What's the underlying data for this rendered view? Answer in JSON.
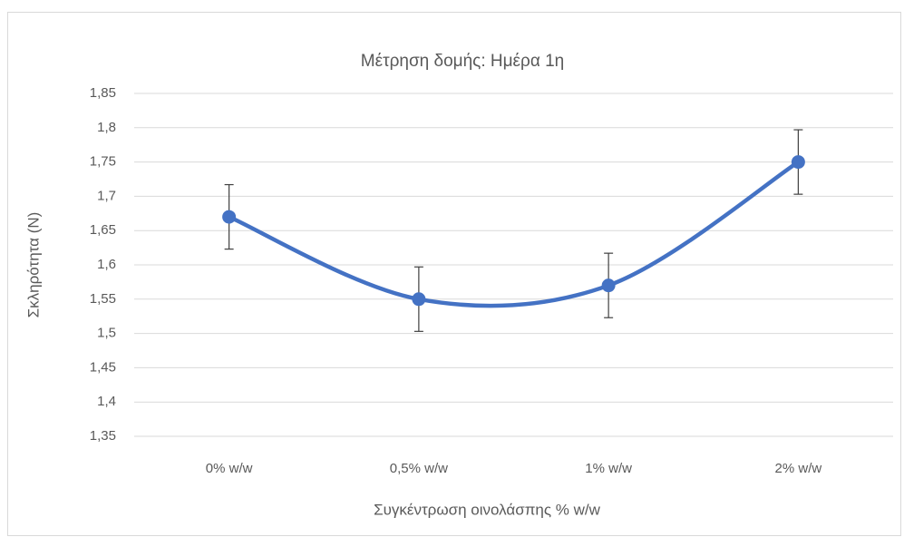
{
  "chart_data": {
    "type": "line",
    "title": "Μέτρηση δομής: Ημέρα 1η",
    "xlabel": "Συγκέντρωση οινολάσπης % w/w",
    "ylabel": "Σκληρότητα (N)",
    "categories": [
      "0% w/w",
      "0,5% w/w",
      "1% w/w",
      "2% w/w"
    ],
    "values": [
      1.67,
      1.55,
      1.57,
      1.75
    ],
    "errors": [
      0.047,
      0.047,
      0.047,
      0.047
    ],
    "color": "#4472c4",
    "smooth": true,
    "markers": true,
    "grid": true,
    "ylim": [
      1.35,
      1.85
    ],
    "yticks": [
      {
        "value": 1.35,
        "label": "1,35"
      },
      {
        "value": 1.4,
        "label": "1,4"
      },
      {
        "value": 1.45,
        "label": "1,45"
      },
      {
        "value": 1.5,
        "label": "1,5"
      },
      {
        "value": 1.55,
        "label": "1,55"
      },
      {
        "value": 1.6,
        "label": "1,6"
      },
      {
        "value": 1.65,
        "label": "1,65"
      },
      {
        "value": 1.7,
        "label": "1,7"
      },
      {
        "value": 1.75,
        "label": "1,75"
      },
      {
        "value": 1.8,
        "label": "1,8"
      },
      {
        "value": 1.85,
        "label": "1,85"
      }
    ]
  }
}
